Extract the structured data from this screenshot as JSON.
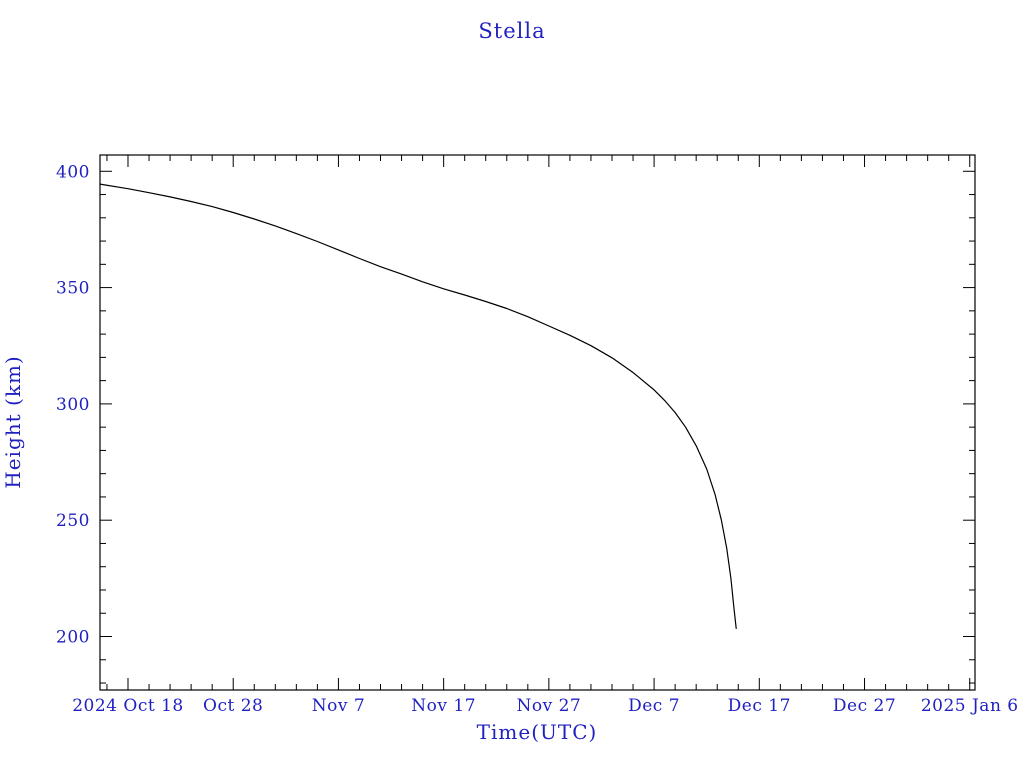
{
  "colors": {
    "text": "#2121c2",
    "curve": "#000000",
    "axis": "#000000",
    "background": "#ffffff"
  },
  "chart_data": {
    "type": "line",
    "title": "Stella",
    "xlabel": "Time(UTC)",
    "ylabel": "Height (km)",
    "legend": "none",
    "grid": false,
    "x_axis": {
      "unit": "days relative to 2024 Oct 18 00:00 UTC",
      "range": [
        -2.66,
        80.5
      ],
      "major_ticks": [
        {
          "day": 0,
          "label": "2024 Oct 18"
        },
        {
          "day": 10,
          "label": "Oct 28"
        },
        {
          "day": 20,
          "label": "Nov 7"
        },
        {
          "day": 30,
          "label": "Nov 17"
        },
        {
          "day": 40,
          "label": "Nov 27"
        },
        {
          "day": 50,
          "label": "Dec 7"
        },
        {
          "day": 60,
          "label": "Dec 17"
        },
        {
          "day": 70,
          "label": "Dec 27"
        },
        {
          "day": 80,
          "label": "2025 Jan 6"
        }
      ],
      "minor_tick_step_days": 2
    },
    "y_axis": {
      "unit": "km",
      "range": [
        177,
        407
      ],
      "major_ticks": [
        200,
        250,
        300,
        350,
        400
      ],
      "minor_tick_step": 10
    },
    "series": [
      {
        "name": "orbital-height-decay",
        "points": [
          [
            -2.66,
            394.5
          ],
          [
            0,
            392.5
          ],
          [
            2,
            390.8
          ],
          [
            4,
            389.0
          ],
          [
            6,
            387.0
          ],
          [
            8,
            384.8
          ],
          [
            10,
            382.3
          ],
          [
            12,
            379.5
          ],
          [
            14,
            376.5
          ],
          [
            16,
            373.2
          ],
          [
            18,
            369.8
          ],
          [
            20,
            366.2
          ],
          [
            22,
            362.5
          ],
          [
            24,
            359.0
          ],
          [
            26,
            355.8
          ],
          [
            28,
            352.5
          ],
          [
            30,
            349.5
          ],
          [
            32,
            346.8
          ],
          [
            34,
            344.0
          ],
          [
            36,
            341.0
          ],
          [
            38,
            337.5
          ],
          [
            40,
            333.5
          ],
          [
            42,
            329.5
          ],
          [
            44,
            325.0
          ],
          [
            46,
            319.8
          ],
          [
            48,
            313.5
          ],
          [
            50,
            306.0
          ],
          [
            51,
            301.5
          ],
          [
            52,
            296.3
          ],
          [
            53,
            290.0
          ],
          [
            54,
            282.0
          ],
          [
            55,
            272.0
          ],
          [
            55.8,
            261.0
          ],
          [
            56.4,
            250.0
          ],
          [
            56.9,
            238.0
          ],
          [
            57.3,
            225.0
          ],
          [
            57.6,
            212.0
          ],
          [
            57.8,
            203.5
          ]
        ]
      }
    ]
  }
}
